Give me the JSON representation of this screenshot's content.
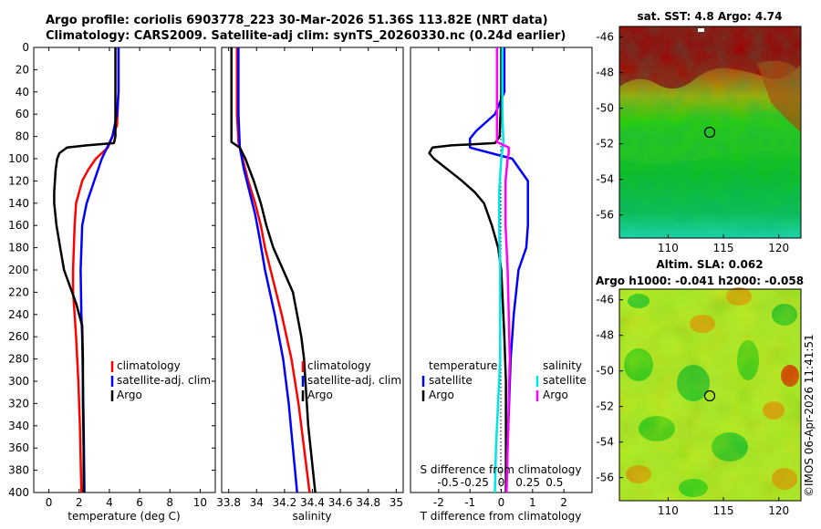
{
  "header": {
    "line1": "Argo profile: coriolis 6903778_223 30-Mar-2026 51.36S 113.82E (NRT data)",
    "line2": "Climatology: CARS2009. Satellite-adj clim: synTS_20260330.nc (0.24d earlier)"
  },
  "colors": {
    "climatology": "#ff0000",
    "satellite": "#0000ff",
    "argo": "#000000",
    "sat_salinity": "#00e5e5",
    "argo_salinity": "#ff00ff"
  },
  "chart_data": [
    {
      "type": "line",
      "title": "",
      "xlabel": "temperature (deg C)",
      "ylabel": "",
      "xlim": [
        -1,
        11
      ],
      "ylim": [
        400,
        0
      ],
      "xticks": [
        "0",
        "2",
        "4",
        "6",
        "8",
        "10"
      ],
      "yticks": [
        "0",
        "20",
        "40",
        "60",
        "80",
        "100",
        "120",
        "140",
        "160",
        "180",
        "200",
        "220",
        "240",
        "260",
        "280",
        "300",
        "320",
        "340",
        "360",
        "380",
        "400"
      ],
      "legend": {
        "position": "right-center",
        "entries": [
          "climatology",
          "satellite-adj. clim",
          "Argo"
        ]
      },
      "series": [
        {
          "name": "climatology",
          "depth": [
            0,
            40,
            70,
            90,
            100,
            110,
            120,
            140,
            160,
            200,
            220,
            240,
            260,
            300,
            340,
            400
          ],
          "values": [
            4.6,
            4.6,
            4.5,
            3.9,
            3.1,
            2.6,
            2.2,
            1.8,
            1.7,
            1.6,
            1.6,
            1.7,
            1.8,
            1.95,
            2.05,
            2.15
          ]
        },
        {
          "name": "satellite-adj. clim",
          "depth": [
            0,
            40,
            60,
            80,
            100,
            120,
            140,
            160,
            200,
            240,
            260,
            300,
            340,
            400
          ],
          "values": [
            4.6,
            4.6,
            4.5,
            4.2,
            3.5,
            3.0,
            2.5,
            2.2,
            2.1,
            2.15,
            2.2,
            2.25,
            2.3,
            2.35
          ]
        },
        {
          "name": "Argo",
          "depth": [
            0,
            20,
            40,
            60,
            80,
            86,
            88,
            90,
            95,
            100,
            110,
            120,
            130,
            140,
            160,
            180,
            200,
            230,
            250,
            280,
            320,
            360,
            400
          ],
          "values": [
            4.4,
            4.4,
            4.4,
            4.4,
            4.4,
            4.3,
            2.5,
            1.2,
            0.7,
            0.55,
            0.45,
            0.4,
            0.35,
            0.35,
            0.5,
            0.75,
            1.0,
            1.8,
            2.2,
            2.25,
            2.25,
            2.3,
            2.3
          ]
        }
      ]
    },
    {
      "type": "line",
      "xlabel": "salinity",
      "xlim": [
        33.75,
        35.05
      ],
      "ylim": [
        400,
        0
      ],
      "xticks": [
        "33.8",
        "34",
        "34.2",
        "34.4",
        "34.6",
        "34.8",
        "35"
      ],
      "legend": {
        "position": "right-center",
        "entries": [
          "climatology",
          "satellite-adj. clim",
          "Argo"
        ]
      },
      "series": [
        {
          "name": "climatology",
          "depth": [
            0,
            60,
            85,
            100,
            120,
            140,
            160,
            180,
            200,
            240,
            280,
            320,
            360,
            400
          ],
          "values": [
            33.86,
            33.86,
            33.87,
            33.9,
            33.94,
            33.99,
            34.03,
            34.06,
            34.1,
            34.18,
            34.25,
            34.3,
            34.34,
            34.38
          ]
        },
        {
          "name": "satellite-adj. clim",
          "depth": [
            0,
            60,
            90,
            110,
            130,
            150,
            170,
            200,
            240,
            280,
            320,
            360,
            400
          ],
          "values": [
            33.87,
            33.87,
            33.88,
            33.91,
            33.95,
            33.99,
            34.02,
            34.06,
            34.13,
            34.19,
            34.23,
            34.26,
            34.29
          ]
        },
        {
          "name": "Argo",
          "depth": [
            0,
            40,
            80,
            85,
            90,
            100,
            120,
            140,
            160,
            180,
            200,
            220,
            240,
            260,
            280,
            300,
            340,
            400
          ],
          "values": [
            33.82,
            33.82,
            33.82,
            33.82,
            33.88,
            33.92,
            33.98,
            34.03,
            34.07,
            34.12,
            34.19,
            34.26,
            34.29,
            34.32,
            34.34,
            34.35,
            34.37,
            34.42
          ]
        }
      ]
    },
    {
      "type": "line",
      "xlabel": "T difference from climatology",
      "xlabel_top": "S difference from climatology",
      "xlim": [
        -2.9,
        2.9
      ],
      "ylim": [
        400,
        0
      ],
      "xticks": [
        "-2",
        "-1",
        "0",
        "1",
        "2"
      ],
      "top_xticks": [
        "-0.5",
        "-0.25",
        "0",
        "0.25",
        "0.5"
      ],
      "legend": {
        "position": "right-center",
        "headers": [
          "temperature",
          "salinity"
        ],
        "entries": [
          "satellite",
          "Argo",
          "satellite",
          "Argo"
        ]
      },
      "series": [
        {
          "name": "temperature satellite",
          "depth": [
            0,
            40,
            60,
            75,
            82,
            90,
            100,
            120,
            140,
            160,
            180,
            200,
            240,
            280,
            320,
            360,
            400
          ],
          "values": [
            0.1,
            0.1,
            -0.2,
            -0.8,
            -1.0,
            -1.0,
            0.35,
            0.85,
            0.85,
            0.85,
            0.8,
            0.55,
            0.4,
            0.3,
            0.25,
            0.2,
            0.15
          ]
        },
        {
          "name": "temperature Argo",
          "depth": [
            0,
            40,
            80,
            86,
            88,
            90,
            95,
            100,
            110,
            120,
            130,
            140,
            160,
            180,
            200,
            230,
            260,
            300,
            340,
            400
          ],
          "values": [
            0.0,
            0.0,
            -0.05,
            -0.2,
            -1.6,
            -2.2,
            -2.3,
            -2.15,
            -1.7,
            -1.25,
            -0.85,
            -0.55,
            -0.3,
            -0.1,
            0.0,
            0.05,
            0.1,
            0.15,
            0.15,
            0.15
          ]
        },
        {
          "name": "salinity satellite",
          "depth": [
            0,
            60,
            85,
            100,
            130,
            160,
            200,
            240,
            280,
            320,
            360,
            400
          ],
          "values": [
            0.01,
            0.01,
            0.02,
            0.0,
            -0.02,
            -0.02,
            -0.01,
            -0.01,
            -0.01,
            -0.03,
            -0.05,
            -0.06
          ]
        },
        {
          "name": "salinity Argo",
          "depth": [
            0,
            40,
            80,
            85,
            90,
            95,
            100,
            120,
            160,
            200,
            240,
            280,
            320,
            360,
            400
          ],
          "values": [
            -0.04,
            -0.04,
            -0.04,
            -0.04,
            0.07,
            0.07,
            0.06,
            0.04,
            0.04,
            0.06,
            0.07,
            0.08,
            0.07,
            0.06,
            0.05
          ]
        }
      ]
    }
  ],
  "legend_labels": {
    "climatology": "climatology",
    "satellite_adj": "satellite-adj. clim",
    "argo": "Argo",
    "temperature": "temperature",
    "salinity": "salinity",
    "satellite": "satellite",
    "argo_small": "Argo"
  },
  "maps": [
    {
      "title": "sat. SST: 4.8 Argo: 4.74",
      "xticks": [
        "110",
        "115",
        "120"
      ],
      "yticks": [
        "-46",
        "-48",
        "-50",
        "-52",
        "-54",
        "-56"
      ]
    },
    {
      "title_line1": "Altim. SLA: 0.062",
      "title_line2": "Argo h1000: -0.041 h2000: -0.058",
      "xticks": [
        "110",
        "115",
        "120"
      ],
      "yticks": [
        "-46",
        "-48",
        "-50",
        "-52",
        "-54",
        "-56"
      ]
    }
  ],
  "watermark": "©IMOS 06-Apr-2026 11:41:51"
}
